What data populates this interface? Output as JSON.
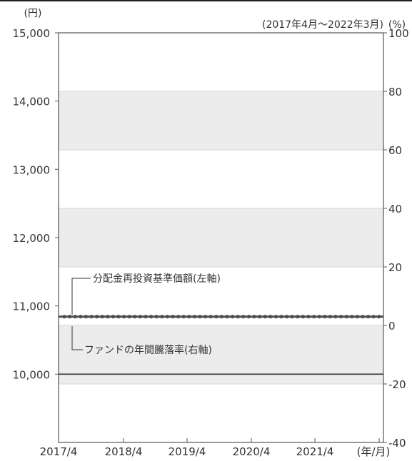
{
  "chart_data": {
    "type": "line",
    "left_unit": "(円)",
    "right_unit": "(%)",
    "period": "(2017年4月～2022年3月)",
    "x_unit": "(年/月)",
    "y_left": {
      "min": 9000,
      "max": 15000,
      "ticks": [
        10000,
        11000,
        12000,
        13000,
        14000,
        15000
      ],
      "tick_labels": [
        "10,000",
        "11,000",
        "12,000",
        "13,000",
        "14,000",
        "15,000"
      ]
    },
    "y_right": {
      "min": -40,
      "max": 100,
      "ticks": [
        -40,
        -20,
        0,
        20,
        40,
        60,
        80,
        100
      ],
      "tick_labels": [
        "-40",
        "-20",
        "0",
        "20",
        "40",
        "60",
        "80",
        "100"
      ]
    },
    "x": {
      "categories": [
        "2017/4",
        "2018/4",
        "2019/4",
        "2020/4",
        "2021/4"
      ]
    },
    "annotations": {
      "nav": "分配金再投資基準価額(左軸)",
      "annual": "ファンドの年間騰落率(右軸)"
    },
    "series": [
      {
        "name": "分配金再投資基準価額(左軸)",
        "axis": "left",
        "style": "line",
        "value": 10000
      },
      {
        "name": "ファンドの年間騰落率(右軸)",
        "axis": "right",
        "style": "dots",
        "value": 3
      }
    ],
    "bands": "alternating grey every 20% on right axis",
    "grid": true
  },
  "colors": {
    "band": "#ececec",
    "line": "#333333",
    "dots": "#4d4d4d",
    "frame": "#555555"
  }
}
